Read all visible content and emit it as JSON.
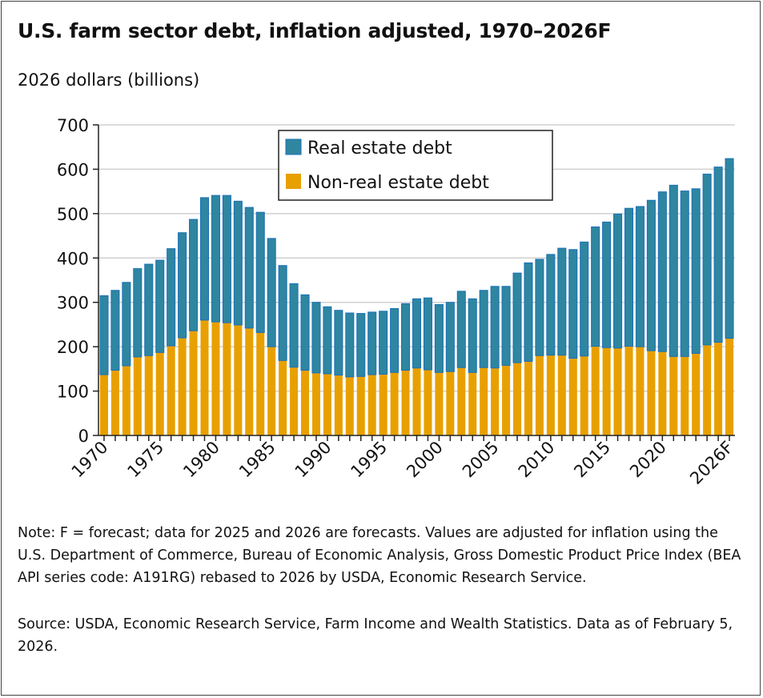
{
  "chart_data": {
    "type": "bar",
    "stacked": true,
    "title": "U.S. farm sector debt, inflation adjusted, 1970–2026F",
    "ylabel": "2026 dollars (billions)",
    "xlabel": "",
    "ylim": [
      0,
      700
    ],
    "yticks": [
      0,
      100,
      200,
      300,
      400,
      500,
      600,
      700
    ],
    "grid": true,
    "legend_placement": "top-center",
    "categories": [
      1970,
      1971,
      1972,
      1973,
      1974,
      1975,
      1976,
      1977,
      1978,
      1979,
      1980,
      1981,
      1982,
      1983,
      1984,
      1985,
      1986,
      1987,
      1988,
      1989,
      1990,
      1991,
      1992,
      1993,
      1994,
      1995,
      1996,
      1997,
      1998,
      1999,
      2000,
      2001,
      2002,
      2003,
      2004,
      2005,
      2006,
      2007,
      2008,
      2009,
      2010,
      2011,
      2012,
      2013,
      2014,
      2015,
      2016,
      2017,
      2018,
      2019,
      2020,
      2021,
      2022,
      2023,
      2024,
      2025,
      2026
    ],
    "xtick_labels": [
      {
        "year": 1970,
        "label": "1970"
      },
      {
        "year": 1975,
        "label": "1975"
      },
      {
        "year": 1980,
        "label": "1980"
      },
      {
        "year": 1985,
        "label": "1985"
      },
      {
        "year": 1990,
        "label": "1990"
      },
      {
        "year": 1995,
        "label": "1995"
      },
      {
        "year": 2000,
        "label": "2000"
      },
      {
        "year": 2005,
        "label": "2005"
      },
      {
        "year": 2010,
        "label": "2010"
      },
      {
        "year": 2015,
        "label": "2015"
      },
      {
        "year": 2020,
        "label": "2020"
      },
      {
        "year": 2026,
        "label": "2026F"
      }
    ],
    "series": [
      {
        "name": "Non-real estate debt",
        "color": "#e8a000",
        "values": [
          137,
          147,
          157,
          177,
          180,
          187,
          202,
          220,
          236,
          260,
          256,
          254,
          249,
          242,
          232,
          200,
          169,
          154,
          147,
          141,
          139,
          136,
          132,
          133,
          137,
          138,
          142,
          147,
          152,
          148,
          142,
          144,
          153,
          142,
          153,
          152,
          158,
          164,
          167,
          180,
          181,
          181,
          174,
          179,
          201,
          198,
          197,
          201,
          200,
          191,
          189,
          178,
          178,
          185,
          204,
          210,
          219
        ]
      },
      {
        "name": "Real estate debt",
        "color": "#2e86a0",
        "values": [
          178,
          180,
          188,
          199,
          206,
          208,
          219,
          237,
          251,
          276,
          285,
          287,
          279,
          272,
          271,
          244,
          214,
          188,
          170,
          159,
          151,
          146,
          144,
          142,
          141,
          142,
          144,
          150,
          156,
          162,
          153,
          156,
          172,
          166,
          174,
          184,
          178,
          202,
          222,
          217,
          227,
          241,
          245,
          257,
          269,
          283,
          302,
          311,
          316,
          339,
          360,
          386,
          373,
          371,
          385,
          395,
          405
        ]
      }
    ]
  },
  "note": "Note: F = forecast; data for 2025 and 2026 are forecasts. Values are adjusted for inflation using the U.S. Department of Commerce, Bureau of Economic Analysis, Gross Domestic Product Price Index (BEA API series code: A191RG) rebased to 2026 by USDA, Economic Research Service.",
  "source": "Source: USDA, Economic Research Service, Farm Income and Wealth Statistics. Data as of February 5, 2026."
}
